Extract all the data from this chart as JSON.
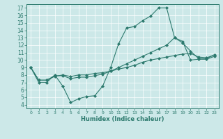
{
  "title": "",
  "xlabel": "Humidex (Indice chaleur)",
  "ylabel": "",
  "bg_color": "#cce8e8",
  "line_color": "#2d7a6e",
  "xlim": [
    -0.5,
    23.5
  ],
  "ylim": [
    3.5,
    17.5
  ],
  "xticks": [
    0,
    1,
    2,
    3,
    4,
    5,
    6,
    7,
    8,
    9,
    10,
    11,
    12,
    13,
    14,
    15,
    16,
    17,
    18,
    19,
    20,
    21,
    22,
    23
  ],
  "yticks": [
    4,
    5,
    6,
    7,
    8,
    9,
    10,
    11,
    12,
    13,
    14,
    15,
    16,
    17
  ],
  "series": [
    {
      "x": [
        0,
        1,
        2,
        3,
        4,
        5,
        6,
        7,
        8,
        9,
        10,
        11,
        12,
        13,
        14,
        15,
        16,
        17,
        18,
        19,
        20,
        21,
        22,
        23
      ],
      "y": [
        9.0,
        7.0,
        7.0,
        8.0,
        6.5,
        4.3,
        4.8,
        5.1,
        5.2,
        6.5,
        9.0,
        12.2,
        14.3,
        14.5,
        15.3,
        15.9,
        17.0,
        17.0,
        13.0,
        12.3,
        11.2,
        10.2,
        10.2,
        10.7
      ]
    },
    {
      "x": [
        0,
        1,
        2,
        3,
        4,
        5,
        6,
        7,
        8,
        9,
        10,
        11,
        12,
        13,
        14,
        15,
        16,
        17,
        18,
        19,
        20,
        21,
        22,
        23
      ],
      "y": [
        9.0,
        7.3,
        7.3,
        7.8,
        8.0,
        7.8,
        8.0,
        8.0,
        8.2,
        8.3,
        8.5,
        8.8,
        9.0,
        9.3,
        9.7,
        10.0,
        10.2,
        10.4,
        10.6,
        10.8,
        10.9,
        10.4,
        10.3,
        10.7
      ]
    },
    {
      "x": [
        0,
        1,
        2,
        3,
        4,
        5,
        6,
        7,
        8,
        9,
        10,
        11,
        12,
        13,
        14,
        15,
        16,
        17,
        18,
        19,
        20,
        21,
        22,
        23
      ],
      "y": [
        9.0,
        7.3,
        7.3,
        7.9,
        7.9,
        7.5,
        7.7,
        7.7,
        7.9,
        8.1,
        8.5,
        9.0,
        9.5,
        10.0,
        10.5,
        11.0,
        11.5,
        12.0,
        13.0,
        12.5,
        10.0,
        10.1,
        10.1,
        10.5
      ]
    }
  ]
}
